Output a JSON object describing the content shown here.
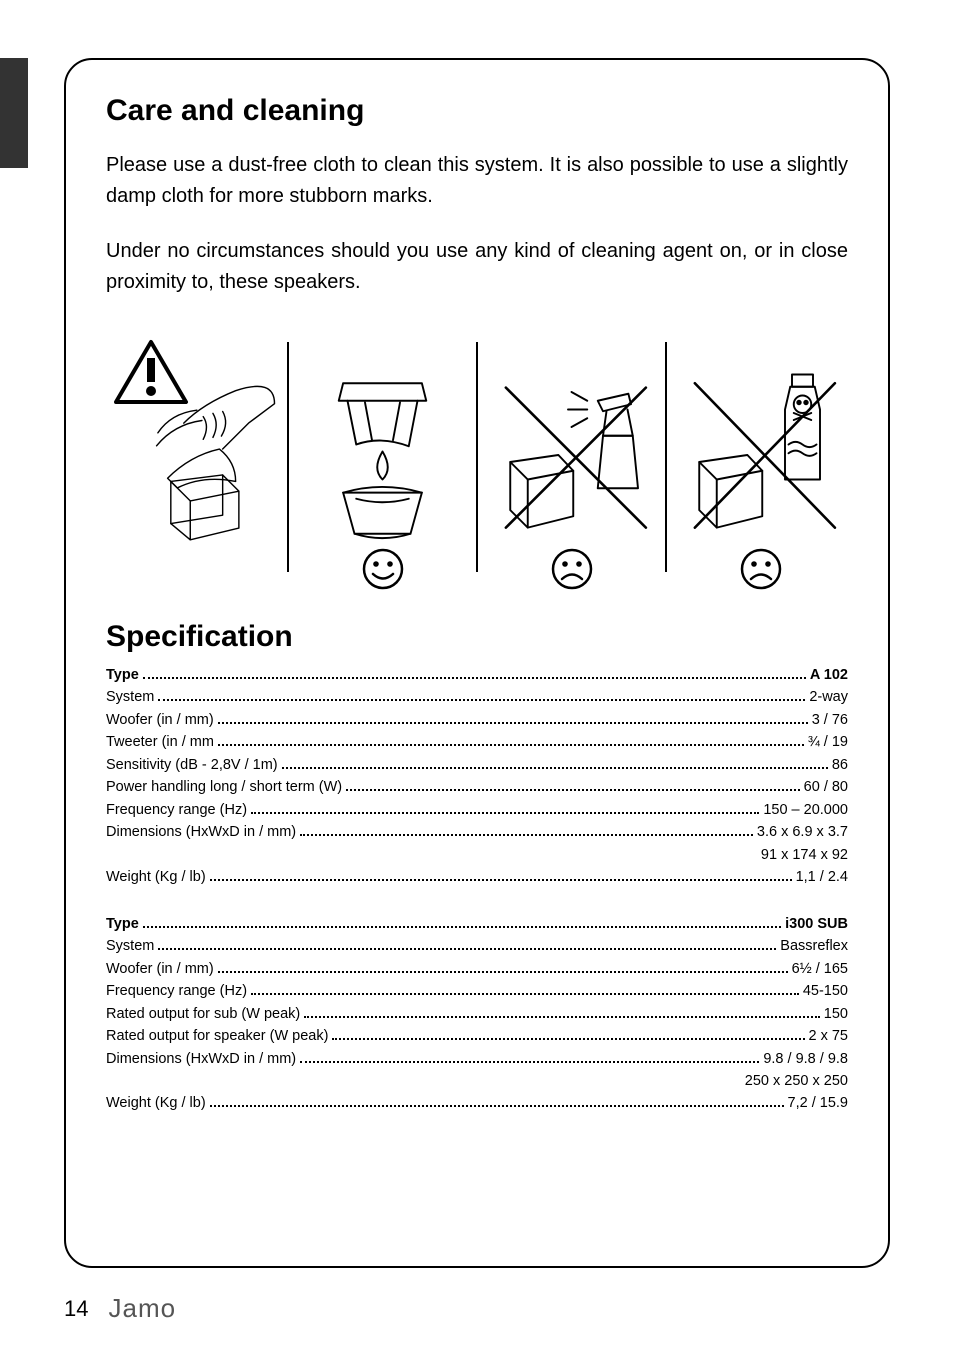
{
  "sections": {
    "care": {
      "title": "Care and cleaning",
      "p1": "Please use a dust-free cloth to clean this system. It is also possible to use a slightly damp cloth for more stubborn marks.",
      "p2": "Under no circumstances should you use any kind of cleaning agent on, or in close proximity to, these speakers."
    },
    "spec": {
      "title": "Specification",
      "blocks": [
        {
          "rows": [
            {
              "label": "Type",
              "value": "A 102",
              "bold": true
            },
            {
              "label": "System",
              "value": "2-way"
            },
            {
              "label": "Woofer (in / mm)",
              "value": "3 / 76"
            },
            {
              "label": "Tweeter (in / mm",
              "value": "¾ / 19"
            },
            {
              "label": "Sensitivity (dB - 2,8V / 1m)",
              "value": "86"
            },
            {
              "label": "Power handling long / short term (W)",
              "value": "60 / 80"
            },
            {
              "label": "Frequency range (Hz)",
              "value": "150 – 20.000"
            },
            {
              "label": "Dimensions (HxWxD in / mm)",
              "value": "3.6 x 6.9 x 3.7"
            },
            {
              "label": "",
              "value": "91 x 174 x 92",
              "right_only": true
            },
            {
              "label": "Weight (Kg / lb)",
              "value": "1,1 / 2.4"
            }
          ]
        },
        {
          "rows": [
            {
              "label": "Type",
              "value": "i300 SUB",
              "bold": true
            },
            {
              "label": "System",
              "value": "Bassreflex"
            },
            {
              "label": "Woofer (in / mm)",
              "value": "6½ / 165"
            },
            {
              "label": "Frequency range (Hz)",
              "value": "45-150"
            },
            {
              "label": "Rated output for sub (W peak)",
              "value": "150"
            },
            {
              "label": "Rated output for speaker (W peak)",
              "value": "2 x 75"
            },
            {
              "label": "Dimensions (HxWxD in / mm)",
              "value": "9.8 / 9.8 / 9.8"
            },
            {
              "label": "",
              "value": "250 x 250 x 250",
              "right_only": true
            },
            {
              "label": "Weight (Kg / lb)",
              "value": "7,2 / 15.9"
            }
          ]
        }
      ]
    }
  },
  "footer": {
    "page": "14",
    "brand": "Jamo"
  },
  "illustration": {
    "stroke": "#000",
    "stroke_width": 2
  }
}
